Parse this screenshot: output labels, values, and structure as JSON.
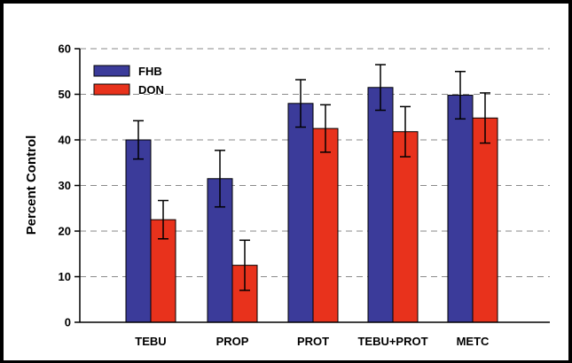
{
  "chart_data": {
    "type": "bar",
    "title": "",
    "xlabel": "",
    "ylabel": "Percent Control",
    "ylim": [
      0,
      60
    ],
    "yticks": [
      0,
      10,
      20,
      30,
      40,
      50,
      60
    ],
    "grid": "horizontal-dashed",
    "legend_position": "top-left",
    "categories": [
      "TEBU",
      "PROP",
      "PROT",
      "TEBU+PROT",
      "METC"
    ],
    "series": [
      {
        "name": "FHB",
        "color": "#3b3b9a",
        "values": [
          40,
          31.5,
          48,
          51.5,
          49.8
        ],
        "errors": [
          4.2,
          6.2,
          5.2,
          5.0,
          5.2
        ]
      },
      {
        "name": "DON",
        "color": "#e8321c",
        "values": [
          22.5,
          12.5,
          42.5,
          41.8,
          44.8
        ],
        "errors": [
          4.2,
          5.5,
          5.2,
          5.5,
          5.5
        ]
      }
    ]
  }
}
